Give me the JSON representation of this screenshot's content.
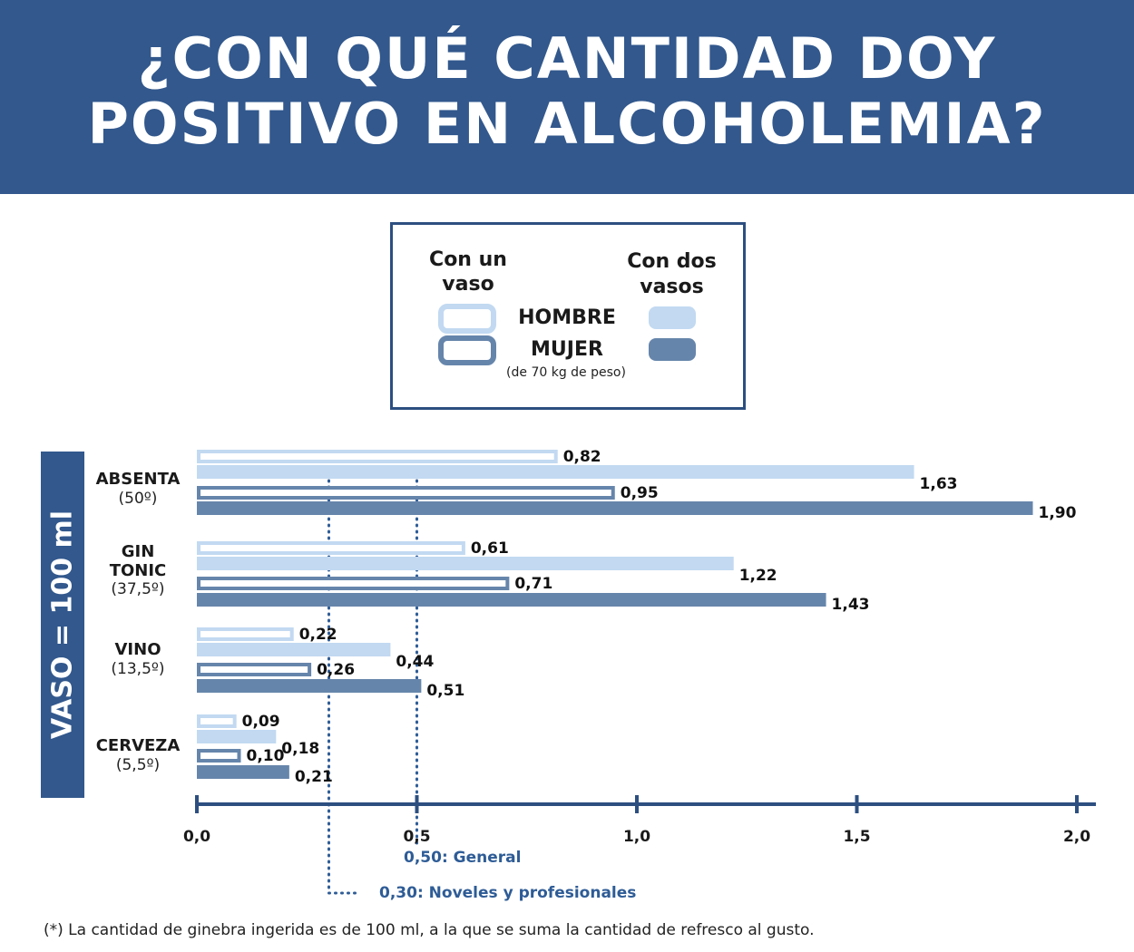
{
  "header": {
    "title_line1": "¿CON QUÉ CANTIDAD DOY",
    "title_line2": "POSITIVO EN ALCOHOLEMIA?"
  },
  "legend": {
    "one_glass_line1": "Con un",
    "one_glass_line2": "vaso",
    "two_glasses_line1": "Con dos",
    "two_glasses_line2": "vasos",
    "man": "HOMBRE",
    "woman": "MUJER",
    "weight_note": "(de 70 kg de peso)"
  },
  "side_label": "VASO = 100 ml",
  "footnote": "(*) La cantidad de ginebra ingerida es de 100 ml, a la que se suma la cantidad de refresco al gusto.",
  "colors": {
    "header_bg": "#32588d",
    "light_blue": "#c2d9f1",
    "dark_blue": "#6685ab",
    "axis": "#2d4f80",
    "reference_label": "#2e5c96"
  },
  "chart_data": {
    "type": "bar",
    "orientation": "horizontal",
    "categories": [
      {
        "name": "ABSENTA",
        "sub": "(50º)"
      },
      {
        "name": "GIN TONIC",
        "name_lines": [
          "GIN",
          "TONIC"
        ],
        "sub": "(37,5º)"
      },
      {
        "name": "VINO",
        "sub": "(13,5º)"
      },
      {
        "name": "CERVEZA",
        "sub": "(5,5º)"
      }
    ],
    "series": [
      {
        "name": "Hombre - Con un vaso",
        "style": "outline-light",
        "values": [
          0.82,
          0.61,
          0.22,
          0.09
        ],
        "labels": [
          "0,82",
          "0,61",
          "0,22",
          "0,09"
        ]
      },
      {
        "name": "Hombre - Con dos vasos",
        "style": "solid-light",
        "values": [
          1.63,
          1.22,
          0.44,
          0.18
        ],
        "labels": [
          "1,63",
          "1,22",
          "0,44",
          "0,18"
        ]
      },
      {
        "name": "Mujer - Con un vaso",
        "style": "outline-dark",
        "values": [
          0.95,
          0.71,
          0.26,
          0.1
        ],
        "labels": [
          "0,95",
          "0,71",
          "0,26",
          "0,10"
        ]
      },
      {
        "name": "Mujer - Con dos vasos",
        "style": "solid-dark",
        "values": [
          1.9,
          1.43,
          0.51,
          0.21
        ],
        "labels": [
          "1,90",
          "1,43",
          "0,51",
          "0,21"
        ]
      }
    ],
    "x_ticks": [
      0,
      0.5,
      1.0,
      1.5,
      2.0
    ],
    "x_tick_labels": [
      "0,0",
      "0,5",
      "1,0",
      "1,5",
      "2,0"
    ],
    "xlim": [
      0,
      2.0
    ],
    "reference_lines": [
      {
        "value": 0.5,
        "label": "0,50: General"
      },
      {
        "value": 0.3,
        "label": "0,30: Noveles y profesionales"
      }
    ],
    "grid": false
  }
}
